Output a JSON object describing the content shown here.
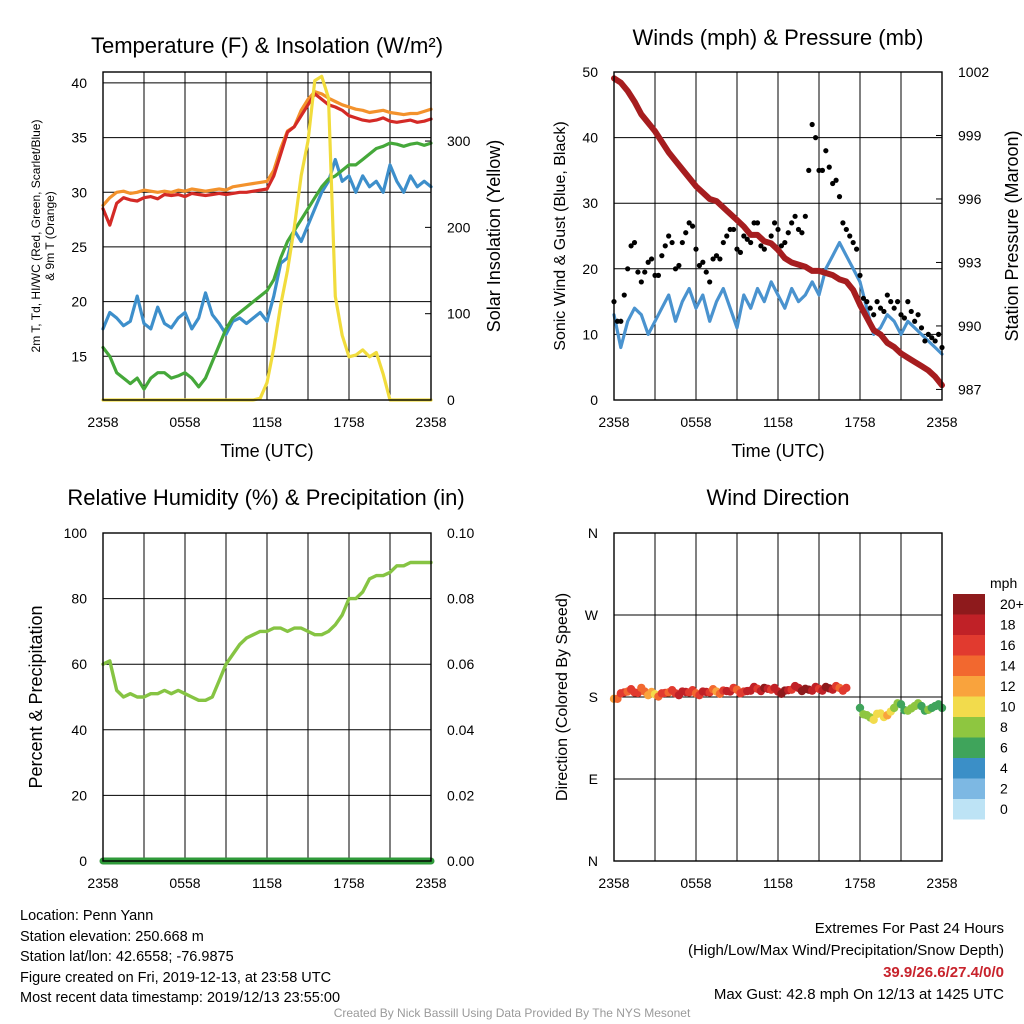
{
  "panels": {
    "temp": {
      "title": "Temperature (F) & Insolation (W/m²)",
      "xlabel": "Time (UTC)",
      "ylabel_left_line1": "2m T, Td, HI/WC (Red, Green, Scarlet/Blue)",
      "ylabel_left_line2": "& 9m T (Orange)",
      "ylabel_right": "Solar Insolation (Yellow)"
    },
    "wind": {
      "title": "Winds (mph) & Pressure (mb)",
      "xlabel": "Time (UTC)",
      "ylabel_left": "Sonic Wind & Gust (Blue, Black)",
      "ylabel_right": "Station Pressure (Maroon)"
    },
    "rh": {
      "title": "Relative Humidity (%) & Precipitation (in)",
      "ylabel_left": "Percent & Precipitation"
    },
    "dir": {
      "title": "Wind Direction",
      "ylabel_left": "Direction (Colored By Speed)",
      "colorbar_unit": "mph"
    }
  },
  "chart_data": [
    {
      "type": "line",
      "title": "Temperature (F) & Insolation (W/m2)",
      "xlabel": "Time (UTC)",
      "x_ticks": [
        "2358",
        "0558",
        "1158",
        "1758",
        "2358"
      ],
      "xlim_hours": [
        0,
        24
      ],
      "ylim_left": [
        11,
        41
      ],
      "y_ticks_left": [
        15,
        20,
        25,
        30,
        35,
        40
      ],
      "ylim_right": [
        0,
        380
      ],
      "y_ticks_right": [
        0,
        100,
        200,
        300
      ],
      "x_hours": [
        0,
        0.5,
        1,
        1.5,
        2,
        2.5,
        3,
        3.5,
        4,
        4.5,
        5,
        5.5,
        6,
        6.5,
        7,
        7.5,
        8,
        8.5,
        9,
        9.5,
        10,
        10.5,
        11,
        11.5,
        12,
        12.5,
        13,
        13.5,
        14,
        14.5,
        15,
        15.5,
        16,
        16.5,
        17,
        17.5,
        18,
        18.5,
        19,
        19.5,
        20,
        20.5,
        21,
        21.5,
        22,
        22.5,
        23,
        23.5,
        24
      ],
      "series": [
        {
          "axis": "left",
          "color": "#f3922c",
          "values": [
            28.8,
            29.5,
            30.0,
            30.1,
            29.9,
            30.0,
            30.2,
            30.1,
            30.0,
            30.1,
            30.0,
            30.2,
            30.1,
            30.3,
            30.2,
            30.1,
            30.2,
            30.3,
            30.2,
            30.5,
            30.6,
            30.7,
            30.8,
            30.9,
            31.0,
            32.0,
            34.0,
            35.6,
            36.0,
            37.5,
            38.5,
            39.2,
            39.0,
            38.6,
            38.3,
            38.0,
            37.8,
            37.6,
            37.5,
            37.3,
            37.4,
            37.5,
            37.3,
            37.2,
            37.1,
            37.2,
            37.2,
            37.4,
            37.6
          ]
        },
        {
          "axis": "left",
          "color": "#d42a26",
          "values": [
            28.5,
            27.0,
            29.0,
            29.5,
            29.3,
            29.2,
            29.5,
            29.6,
            29.4,
            29.8,
            29.7,
            29.8,
            29.6,
            29.9,
            29.8,
            29.7,
            29.8,
            29.9,
            29.8,
            29.9,
            30.0,
            30.0,
            30.1,
            30.2,
            30.3,
            31.5,
            33.5,
            35.5,
            36.0,
            37.0,
            38.0,
            39.0,
            38.5,
            38.0,
            37.8,
            37.5,
            37.0,
            36.8,
            36.6,
            36.5,
            36.6,
            36.8,
            36.5,
            36.4,
            36.5,
            36.6,
            36.4,
            36.5,
            36.7
          ]
        },
        {
          "axis": "left",
          "color": "#3d8fcb",
          "values": [
            17.5,
            19.0,
            18.5,
            17.8,
            18.2,
            20.5,
            18.0,
            17.5,
            19.5,
            18.0,
            17.6,
            18.5,
            19.0,
            17.5,
            18.5,
            20.8,
            18.8,
            18.0,
            17.0,
            18.2,
            18.5,
            18.0,
            18.5,
            19.0,
            18.2,
            20.5,
            23.5,
            24.0,
            26.5,
            25.5,
            27.0,
            28.5,
            30.0,
            31.0,
            33.0,
            31.0,
            31.5,
            30.0,
            31.5,
            30.5,
            31.0,
            30.0,
            32.5,
            31.0,
            30.0,
            31.5,
            30.5,
            31.0,
            30.5
          ]
        },
        {
          "axis": "left",
          "color": "#45a83a",
          "values": [
            15.8,
            15.0,
            13.5,
            13.0,
            12.5,
            13.0,
            12.0,
            13.0,
            13.5,
            13.5,
            13.0,
            13.2,
            13.5,
            13.0,
            12.2,
            13.0,
            14.5,
            16.0,
            17.5,
            18.5,
            19.0,
            19.5,
            20.0,
            20.5,
            21.0,
            22.0,
            24.0,
            25.5,
            26.5,
            27.5,
            28.5,
            29.5,
            30.5,
            31.2,
            31.5,
            32.0,
            32.5,
            32.5,
            33.0,
            33.5,
            34.0,
            34.2,
            34.5,
            34.4,
            34.2,
            34.4,
            34.5,
            34.3,
            34.5
          ]
        },
        {
          "axis": "right",
          "color": "#f1dc3c",
          "values": [
            0,
            0,
            0,
            0,
            0,
            0,
            0,
            0,
            0,
            0,
            0,
            0,
            0,
            0,
            0,
            0,
            0,
            0,
            0,
            0,
            0,
            0,
            0,
            2,
            20,
            60,
            110,
            150,
            200,
            260,
            300,
            370,
            375,
            350,
            120,
            75,
            50,
            52,
            58,
            50,
            55,
            30,
            0,
            0,
            0,
            0,
            0,
            0,
            0
          ]
        }
      ]
    },
    {
      "type": "line",
      "title": "Winds (mph) & Pressure (mb)",
      "xlabel": "Time (UTC)",
      "x_ticks": [
        "2358",
        "0558",
        "1158",
        "1758",
        "2358"
      ],
      "xlim_hours": [
        0,
        24
      ],
      "ylim_left": [
        0,
        50
      ],
      "y_ticks_left": [
        0,
        10,
        20,
        30,
        40,
        50
      ],
      "ylim_right": [
        986.5,
        1002
      ],
      "y_ticks_right": [
        987,
        990,
        993,
        996,
        999,
        1002
      ],
      "x_hours": [
        0,
        0.5,
        1,
        1.5,
        2,
        2.5,
        3,
        3.5,
        4,
        4.5,
        5,
        5.5,
        6,
        6.5,
        7,
        7.5,
        8,
        8.5,
        9,
        9.5,
        10,
        10.5,
        11,
        11.5,
        12,
        12.5,
        13,
        13.5,
        14,
        14.5,
        15,
        15.5,
        16,
        16.5,
        17,
        17.5,
        18,
        18.5,
        19,
        19.5,
        20,
        20.5,
        21,
        21.5,
        22,
        22.5,
        23,
        23.5,
        24
      ],
      "series": [
        {
          "axis": "left",
          "color": "#4a93cf",
          "values": [
            13,
            8,
            12,
            14,
            13,
            10,
            12,
            14,
            16,
            12,
            15,
            17,
            14,
            16,
            12,
            15,
            17,
            14,
            11,
            16,
            14,
            17,
            15,
            18,
            16,
            14,
            17,
            15,
            16,
            18,
            16,
            20,
            22,
            24,
            22,
            20,
            18,
            14,
            10,
            11,
            13,
            12,
            10,
            12,
            11,
            10,
            9,
            8,
            7
          ]
        },
        {
          "axis": "left",
          "color": "#000000",
          "style": "dots",
          "values": [
            15,
            12,
            20,
            24,
            18,
            21,
            19,
            22,
            25,
            20,
            24,
            27,
            23,
            21,
            18,
            22,
            24,
            26,
            23,
            25,
            24,
            27,
            23,
            25,
            26,
            24,
            27,
            26,
            28,
            42,
            35,
            38,
            33,
            31,
            26,
            24,
            19,
            15,
            13,
            14,
            16,
            14,
            13,
            15,
            12,
            11,
            10,
            9,
            8
          ]
        },
        {
          "axis": "right",
          "color": "#a61d1f",
          "values": [
            1001.7,
            1001.5,
            1001.1,
            1000.6,
            1000.0,
            999.6,
            999.2,
            998.7,
            998.2,
            997.8,
            997.4,
            997.0,
            996.6,
            996.3,
            996.0,
            995.9,
            995.6,
            995.3,
            995.0,
            994.7,
            994.3,
            994.3,
            994.0,
            993.9,
            993.6,
            993.2,
            993.0,
            992.9,
            992.8,
            992.6,
            992.6,
            992.5,
            992.4,
            992.2,
            992.1,
            991.7,
            991.0,
            990.4,
            989.8,
            989.6,
            989.2,
            989.0,
            988.7,
            988.5,
            988.3,
            988.1,
            987.9,
            987.6,
            987.2
          ]
        }
      ]
    },
    {
      "type": "line",
      "title": "Relative Humidity (%) & Precipitation (in)",
      "x_ticks": [
        "2358",
        "0558",
        "1158",
        "1758",
        "2358"
      ],
      "xlim_hours": [
        0,
        24
      ],
      "ylim_left": [
        0,
        100
      ],
      "y_ticks_left": [
        0,
        20,
        40,
        60,
        80,
        100
      ],
      "ylim_right": [
        0,
        0.1
      ],
      "y_ticks_right": [
        "0.00",
        "0.02",
        "0.04",
        "0.06",
        "0.08",
        "0.10"
      ],
      "x_hours": [
        0,
        0.5,
        1,
        1.5,
        2,
        2.5,
        3,
        3.5,
        4,
        4.5,
        5,
        5.5,
        6,
        6.5,
        7,
        7.5,
        8,
        8.5,
        9,
        9.5,
        10,
        10.5,
        11,
        11.5,
        12,
        12.5,
        13,
        13.5,
        14,
        14.5,
        15,
        15.5,
        16,
        16.5,
        17,
        17.5,
        18,
        18.5,
        19,
        19.5,
        20,
        20.5,
        21,
        21.5,
        22,
        22.5,
        23,
        23.5,
        24
      ],
      "series": [
        {
          "axis": "left",
          "color": "#86c443",
          "values": [
            60,
            61,
            52,
            50,
            51,
            50,
            50,
            51,
            51,
            52,
            51,
            52,
            51,
            50,
            49,
            49,
            50,
            55,
            60,
            63,
            66,
            68,
            69,
            70,
            70,
            71,
            71,
            70,
            71,
            71,
            70,
            69,
            69,
            70,
            72,
            75,
            80,
            80,
            82,
            86,
            87,
            87,
            88,
            90,
            90,
            91,
            91,
            91,
            91
          ]
        },
        {
          "axis": "right",
          "color": "#2f9a3a",
          "values": [
            0,
            0,
            0,
            0,
            0,
            0,
            0,
            0,
            0,
            0,
            0,
            0,
            0,
            0,
            0,
            0,
            0,
            0,
            0,
            0,
            0,
            0,
            0,
            0,
            0,
            0,
            0,
            0,
            0,
            0,
            0,
            0,
            0,
            0,
            0,
            0,
            0,
            0,
            0,
            0,
            0,
            0,
            0,
            0,
            0,
            0,
            0,
            0,
            0
          ]
        }
      ]
    },
    {
      "type": "scatter",
      "title": "Wind Direction",
      "x_ticks": [
        "2358",
        "0558",
        "1158",
        "1758",
        "2358"
      ],
      "xlim_hours": [
        0,
        24
      ],
      "y_ticks": [
        "N",
        "E",
        "S",
        "W",
        "N"
      ],
      "ylim_deg": [
        0,
        360
      ],
      "x_hours": [
        0,
        0.5,
        1,
        1.5,
        2,
        2.5,
        3,
        3.5,
        4,
        4.5,
        5,
        5.5,
        6,
        6.5,
        7,
        7.5,
        8,
        8.5,
        9,
        9.5,
        10,
        10.5,
        11,
        11.5,
        12,
        12.5,
        13,
        13.5,
        14,
        14.5,
        15,
        15.5,
        16,
        16.5,
        17,
        17.5,
        18,
        18.5,
        19,
        19.5,
        20,
        20.5,
        21,
        21.5,
        22,
        22.5,
        23,
        23.5,
        24
      ],
      "direction_deg": [
        178,
        184,
        186,
        185,
        190,
        182,
        183,
        184,
        185,
        184,
        186,
        185,
        184,
        186,
        185,
        186,
        187,
        186,
        188,
        186,
        187,
        189,
        190,
        188,
        186,
        187,
        188,
        190,
        189,
        187,
        189,
        191,
        188,
        190,
        190,
        null,
        168,
        160,
        155,
        162,
        160,
        168,
        172,
        165,
        170,
        170,
        166,
        170,
        168
      ],
      "speed_mph": [
        12,
        16,
        14,
        16,
        14,
        12,
        10,
        16,
        14,
        16,
        18,
        16,
        14,
        18,
        16,
        12,
        16,
        18,
        14,
        16,
        18,
        16,
        20,
        16,
        18,
        20,
        16,
        18,
        20,
        18,
        16,
        20,
        18,
        14,
        16,
        null,
        6,
        8,
        9,
        10,
        11,
        8,
        6,
        7,
        8,
        6,
        7,
        5,
        6
      ],
      "colorbar": {
        "unit": "mph",
        "labels": [
          "20+",
          "18",
          "16",
          "14",
          "12",
          "10",
          "8",
          "6",
          "4",
          "2",
          "0"
        ],
        "colors": [
          "#8e1a1c",
          "#c02127",
          "#e13a2f",
          "#f2682f",
          "#f9a33d",
          "#f2db4c",
          "#8ec640",
          "#3fa45b",
          "#3b8fc7",
          "#7db8e3",
          "#bde3f5"
        ]
      }
    }
  ],
  "station": {
    "location": "Location: Penn Yann",
    "elevation": "Station elevation: 250.668 m",
    "latlon": "Station lat/lon: 42.6558; -76.9875",
    "created": "Figure created on Fri, 2019-12-13, at 23:58 UTC",
    "recent": "Most recent data timestamp: 2019/12/13 23:55:00"
  },
  "extremes": {
    "title": "Extremes For Past 24 Hours",
    "subtitle": "(High/Low/Max Wind/Precipitation/Snow Depth)",
    "values": "39.9/26.6/27.4/0/0",
    "gust": "Max Gust: 42.8 mph On 12/13 at 1425 UTC"
  },
  "credit": "Created By Nick Bassill Using Data Provided By The NYS Mesonet"
}
